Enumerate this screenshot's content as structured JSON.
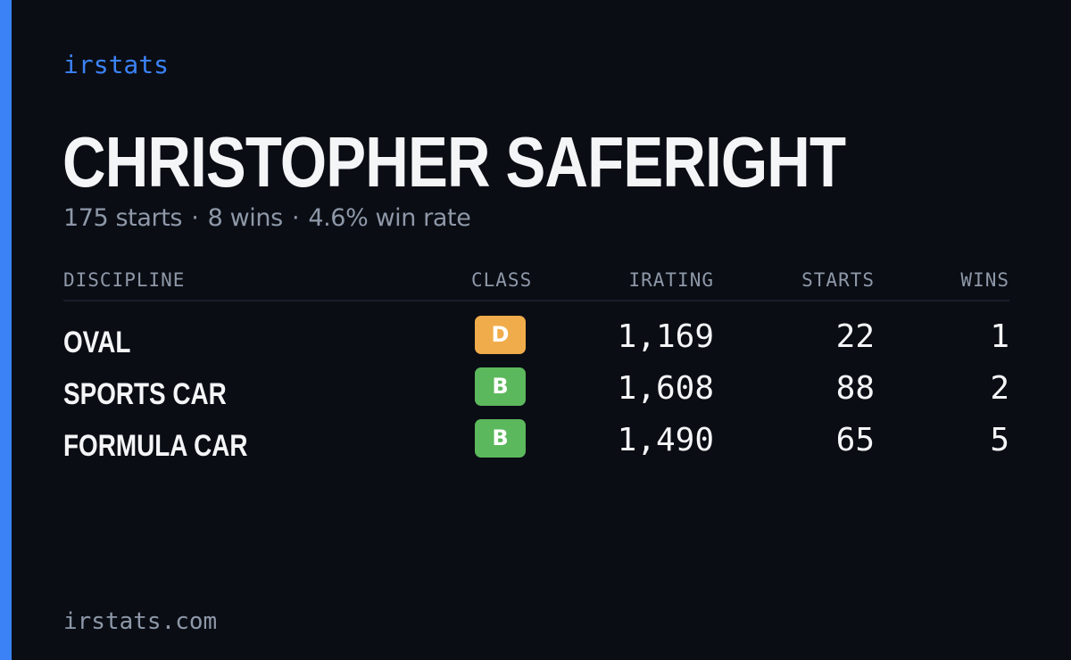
{
  "brand": "irstats",
  "player": {
    "name": "CHRISTOPHER SAFERIGHT",
    "summary": {
      "starts": "175 starts",
      "wins": "8 wins",
      "win_rate": "4.6% win rate",
      "separator": "·"
    }
  },
  "table": {
    "headers": {
      "discipline": "DISCIPLINE",
      "class": "CLASS",
      "irating": "IRATING",
      "starts": "STARTS",
      "wins": "WINS"
    },
    "rows": [
      {
        "discipline": "OVAL",
        "class": "D",
        "class_color": "#f0ac4a",
        "irating": "1,169",
        "starts": "22",
        "wins": "1"
      },
      {
        "discipline": "SPORTS CAR",
        "class": "B",
        "class_color": "#5cb85c",
        "irating": "1,608",
        "starts": "88",
        "wins": "2"
      },
      {
        "discipline": "FORMULA CAR",
        "class": "B",
        "class_color": "#5cb85c",
        "irating": "1,490",
        "starts": "65",
        "wins": "5"
      }
    ]
  },
  "footer": "irstats.com",
  "colors": {
    "accent": "#3b82f6",
    "background": "#0a0d14",
    "text_primary": "#f4f5f7",
    "text_muted": "#8e98a8"
  }
}
